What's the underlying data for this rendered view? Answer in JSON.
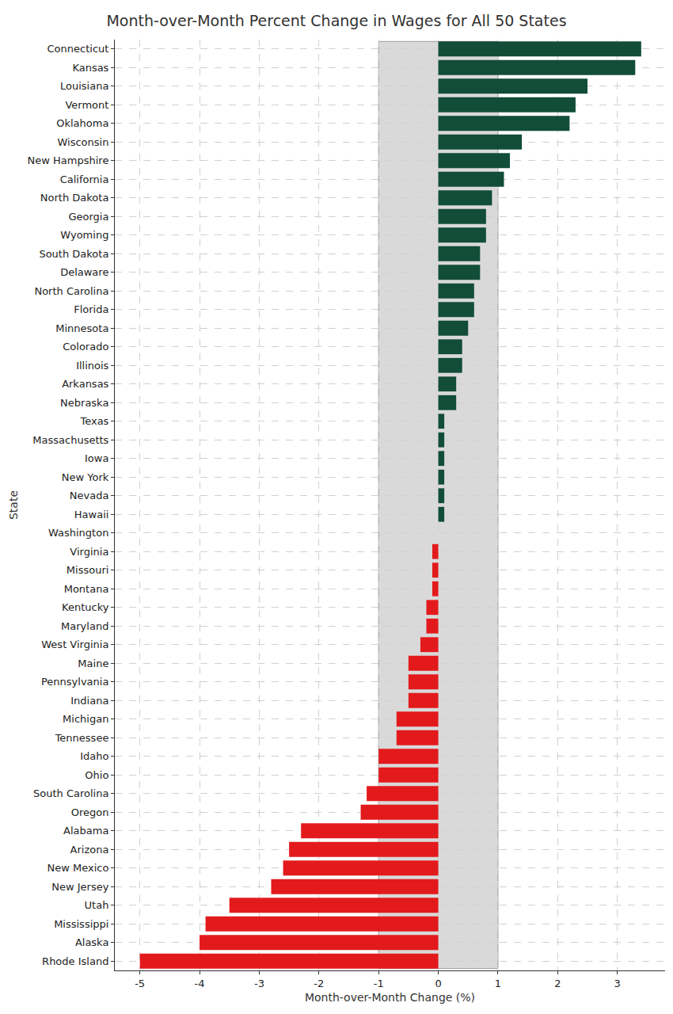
{
  "chart_data": {
    "type": "bar",
    "orientation": "horizontal",
    "title": "Month-over-Month Percent Change in Wages for All 50 States",
    "x_label": "Month-over-Month Change (%)",
    "y_label": "State",
    "categories": [
      "Connecticut",
      "Kansas",
      "Louisiana",
      "Vermont",
      "Oklahoma",
      "Wisconsin",
      "New Hampshire",
      "California",
      "North Dakota",
      "Georgia",
      "Wyoming",
      "South Dakota",
      "Delaware",
      "North Carolina",
      "Florida",
      "Minnesota",
      "Colorado",
      "Illinois",
      "Arkansas",
      "Nebraska",
      "Texas",
      "Massachusetts",
      "Iowa",
      "New York",
      "Nevada",
      "Hawaii",
      "Washington",
      "Virginia",
      "Missouri",
      "Montana",
      "Kentucky",
      "Maryland",
      "West Virginia",
      "Maine",
      "Pennsylvania",
      "Indiana",
      "Michigan",
      "Tennessee",
      "Idaho",
      "Ohio",
      "South Carolina",
      "Oregon",
      "Alabama",
      "Arizona",
      "New Mexico",
      "New Jersey",
      "Utah",
      "Mississippi",
      "Alaska",
      "Rhode Island"
    ],
    "values": [
      3.4,
      3.3,
      2.5,
      2.3,
      2.2,
      1.4,
      1.2,
      1.1,
      0.9,
      0.8,
      0.8,
      0.7,
      0.7,
      0.6,
      0.6,
      0.5,
      0.4,
      0.4,
      0.3,
      0.3,
      0.1,
      0.1,
      0.1,
      0.1,
      0.1,
      0.1,
      0,
      -0.1,
      -0.1,
      -0.1,
      -0.2,
      -0.2,
      -0.3,
      -0.5,
      -0.5,
      -0.5,
      -0.7,
      -0.7,
      -1.0,
      -1.0,
      -1.2,
      -1.3,
      -2.3,
      -2.5,
      -2.6,
      -2.8,
      -3.5,
      -3.9,
      -4.0,
      -5.0
    ],
    "colors": [
      "#124d38",
      "#124d38",
      "#124d38",
      "#124d38",
      "#124d38",
      "#124d38",
      "#124d38",
      "#124d38",
      "#124d38",
      "#124d38",
      "#124d38",
      "#124d38",
      "#124d38",
      "#124d38",
      "#124d38",
      "#124d38",
      "#124d38",
      "#124d38",
      "#124d38",
      "#124d38",
      "#124d38",
      "#124d38",
      "#124d38",
      "#124d38",
      "#124d38",
      "#124d38",
      "#124d38",
      "#e31a1c",
      "#e31a1c",
      "#e31a1c",
      "#e31a1c",
      "#e31a1c",
      "#e31a1c",
      "#e31a1c",
      "#e31a1c",
      "#e31a1c",
      "#e31a1c",
      "#e31a1c",
      "#e31a1c",
      "#e31a1c",
      "#e31a1c",
      "#e31a1c",
      "#e31a1c",
      "#e31a1c",
      "#e31a1c",
      "#e31a1c",
      "#e31a1c",
      "#e31a1c",
      "#e31a1c",
      "#e31a1c"
    ],
    "band": [
      -1,
      1
    ],
    "xlim": [
      -5.42,
      3.8
    ],
    "xticks": [
      -5,
      -4,
      -3,
      -2,
      -1,
      0,
      1,
      2,
      3
    ],
    "grid": true
  }
}
